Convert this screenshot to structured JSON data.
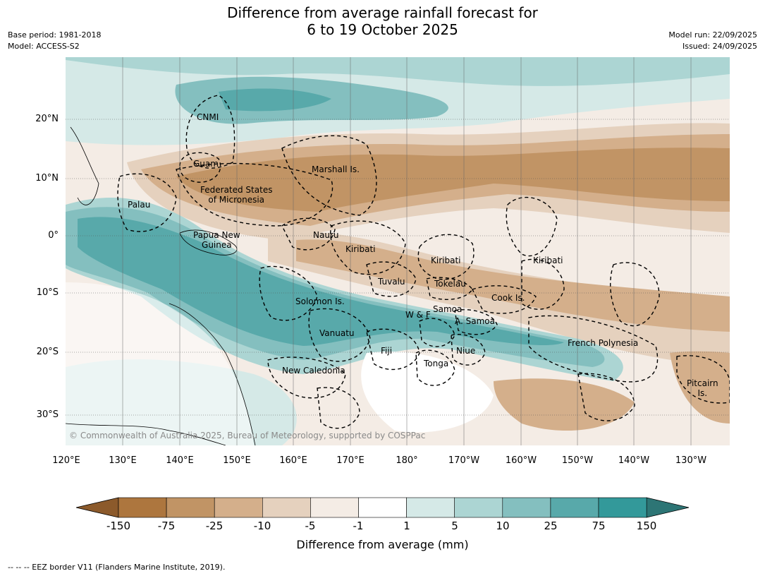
{
  "title_line1": "Difference from average rainfall forecast for",
  "title_line2": "6 to 19 October 2025",
  "meta_left": {
    "base_period": "Base period: 1981-2018",
    "model": "Model: ACCESS-S2"
  },
  "meta_right": {
    "model_run": "Model run: 22/09/2025",
    "issued": "Issued: 24/09/2025"
  },
  "lat_labels": [
    "20°N",
    "10°N",
    "0°",
    "10°S",
    "20°S",
    "30°S"
  ],
  "lon_labels": [
    "120°E",
    "130°E",
    "140°E",
    "150°E",
    "160°E",
    "170°E",
    "180°",
    "170°W",
    "160°W",
    "150°W",
    "140°W",
    "130°W"
  ],
  "regions": {
    "cnmi": "CNMI",
    "guam": "Guam",
    "marshall": "Marshall Is.",
    "fsm_1": "Federated States",
    "fsm_2": "of Micronesia",
    "palau": "Palau",
    "nauru": "Nauru",
    "png_1": "Papua New",
    "png_2": "Guinea",
    "kiribati_west": "Kiribati",
    "kiribati_central": "Kiribati",
    "kiribati_east": "Kiribati",
    "tuvalu": "Tuvalu",
    "tokelau": "Tokelau",
    "cook": "Cook Is.",
    "solomon": "Solomon Is.",
    "samoa": "Samoa",
    "wf": "W & F",
    "asamoa": "A. Samoa",
    "vanuatu": "Vanuatu",
    "fiji": "Fiji",
    "niue": "Niue",
    "tonga": "Tonga",
    "french_polynesia": "French Polynesia",
    "new_caledonia": "New Caledonia",
    "pitcairn_1": "Pitcairn",
    "pitcairn_2": "Is."
  },
  "copyright": "© Commonwealth of Australia 2025, Bureau of Meteorology, supported by COSPPac",
  "colorbar": {
    "ticks": [
      "-150",
      "-75",
      "-25",
      "-10",
      "-5",
      "-1",
      "1",
      "5",
      "10",
      "25",
      "75",
      "150"
    ],
    "colors": [
      "#8c5a2b",
      "#ad763e",
      "#c19465",
      "#d4af8b",
      "#e5d1be",
      "#f4ece5",
      "#ffffff",
      "#d5e9e7",
      "#acd5d3",
      "#84bfbf",
      "#58a9aa",
      "#33999a",
      "#2d7575"
    ],
    "title": "Difference from average (mm)"
  },
  "footer": "-- -- -- EEZ border V11 (Flanders Marine Institute, 2019)."
}
